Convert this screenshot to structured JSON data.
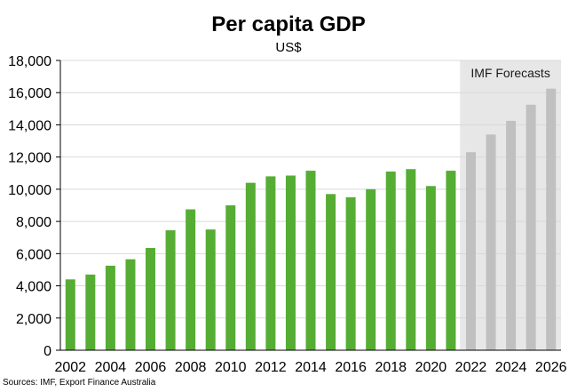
{
  "chart_data": {
    "type": "bar",
    "title": "Per capita GDP",
    "subtitle": "US$",
    "xlabel": "",
    "ylabel": "",
    "ylim": [
      0,
      18000
    ],
    "yticks": [
      0,
      2000,
      4000,
      6000,
      8000,
      10000,
      12000,
      14000,
      16000,
      18000
    ],
    "ytick_labels": [
      "0",
      "2,000",
      "4,000",
      "6,000",
      "8,000",
      "10,000",
      "12,000",
      "14,000",
      "16,000",
      "18,000"
    ],
    "xtick_labels": [
      "2002",
      "2004",
      "2006",
      "2008",
      "2010",
      "2012",
      "2014",
      "2016",
      "2018",
      "2020",
      "2022",
      "2024",
      "2026"
    ],
    "categories": [
      "2002",
      "2003",
      "2004",
      "2005",
      "2006",
      "2007",
      "2008",
      "2009",
      "2010",
      "2011",
      "2012",
      "2013",
      "2014",
      "2015",
      "2016",
      "2017",
      "2018",
      "2019",
      "2020",
      "2021",
      "2022",
      "2023",
      "2024",
      "2025",
      "2026"
    ],
    "values": [
      4400,
      4700,
      5250,
      5650,
      6350,
      7450,
      8750,
      7500,
      9000,
      10400,
      10800,
      10850,
      11150,
      9700,
      9500,
      10000,
      11100,
      11250,
      10200,
      11150,
      12300,
      13400,
      14250,
      15250,
      16250
    ],
    "forecast_start": "2022",
    "forecast_label": "IMF Forecasts",
    "colors": {
      "actual": "#56ad34",
      "forecast": "#c0c0c0",
      "forecast_band": "#e7e7e7",
      "grid": "#d9d9d9"
    },
    "grid": true,
    "legend": "none"
  },
  "source_note": "Sources: IMF, Export Finance Australia"
}
